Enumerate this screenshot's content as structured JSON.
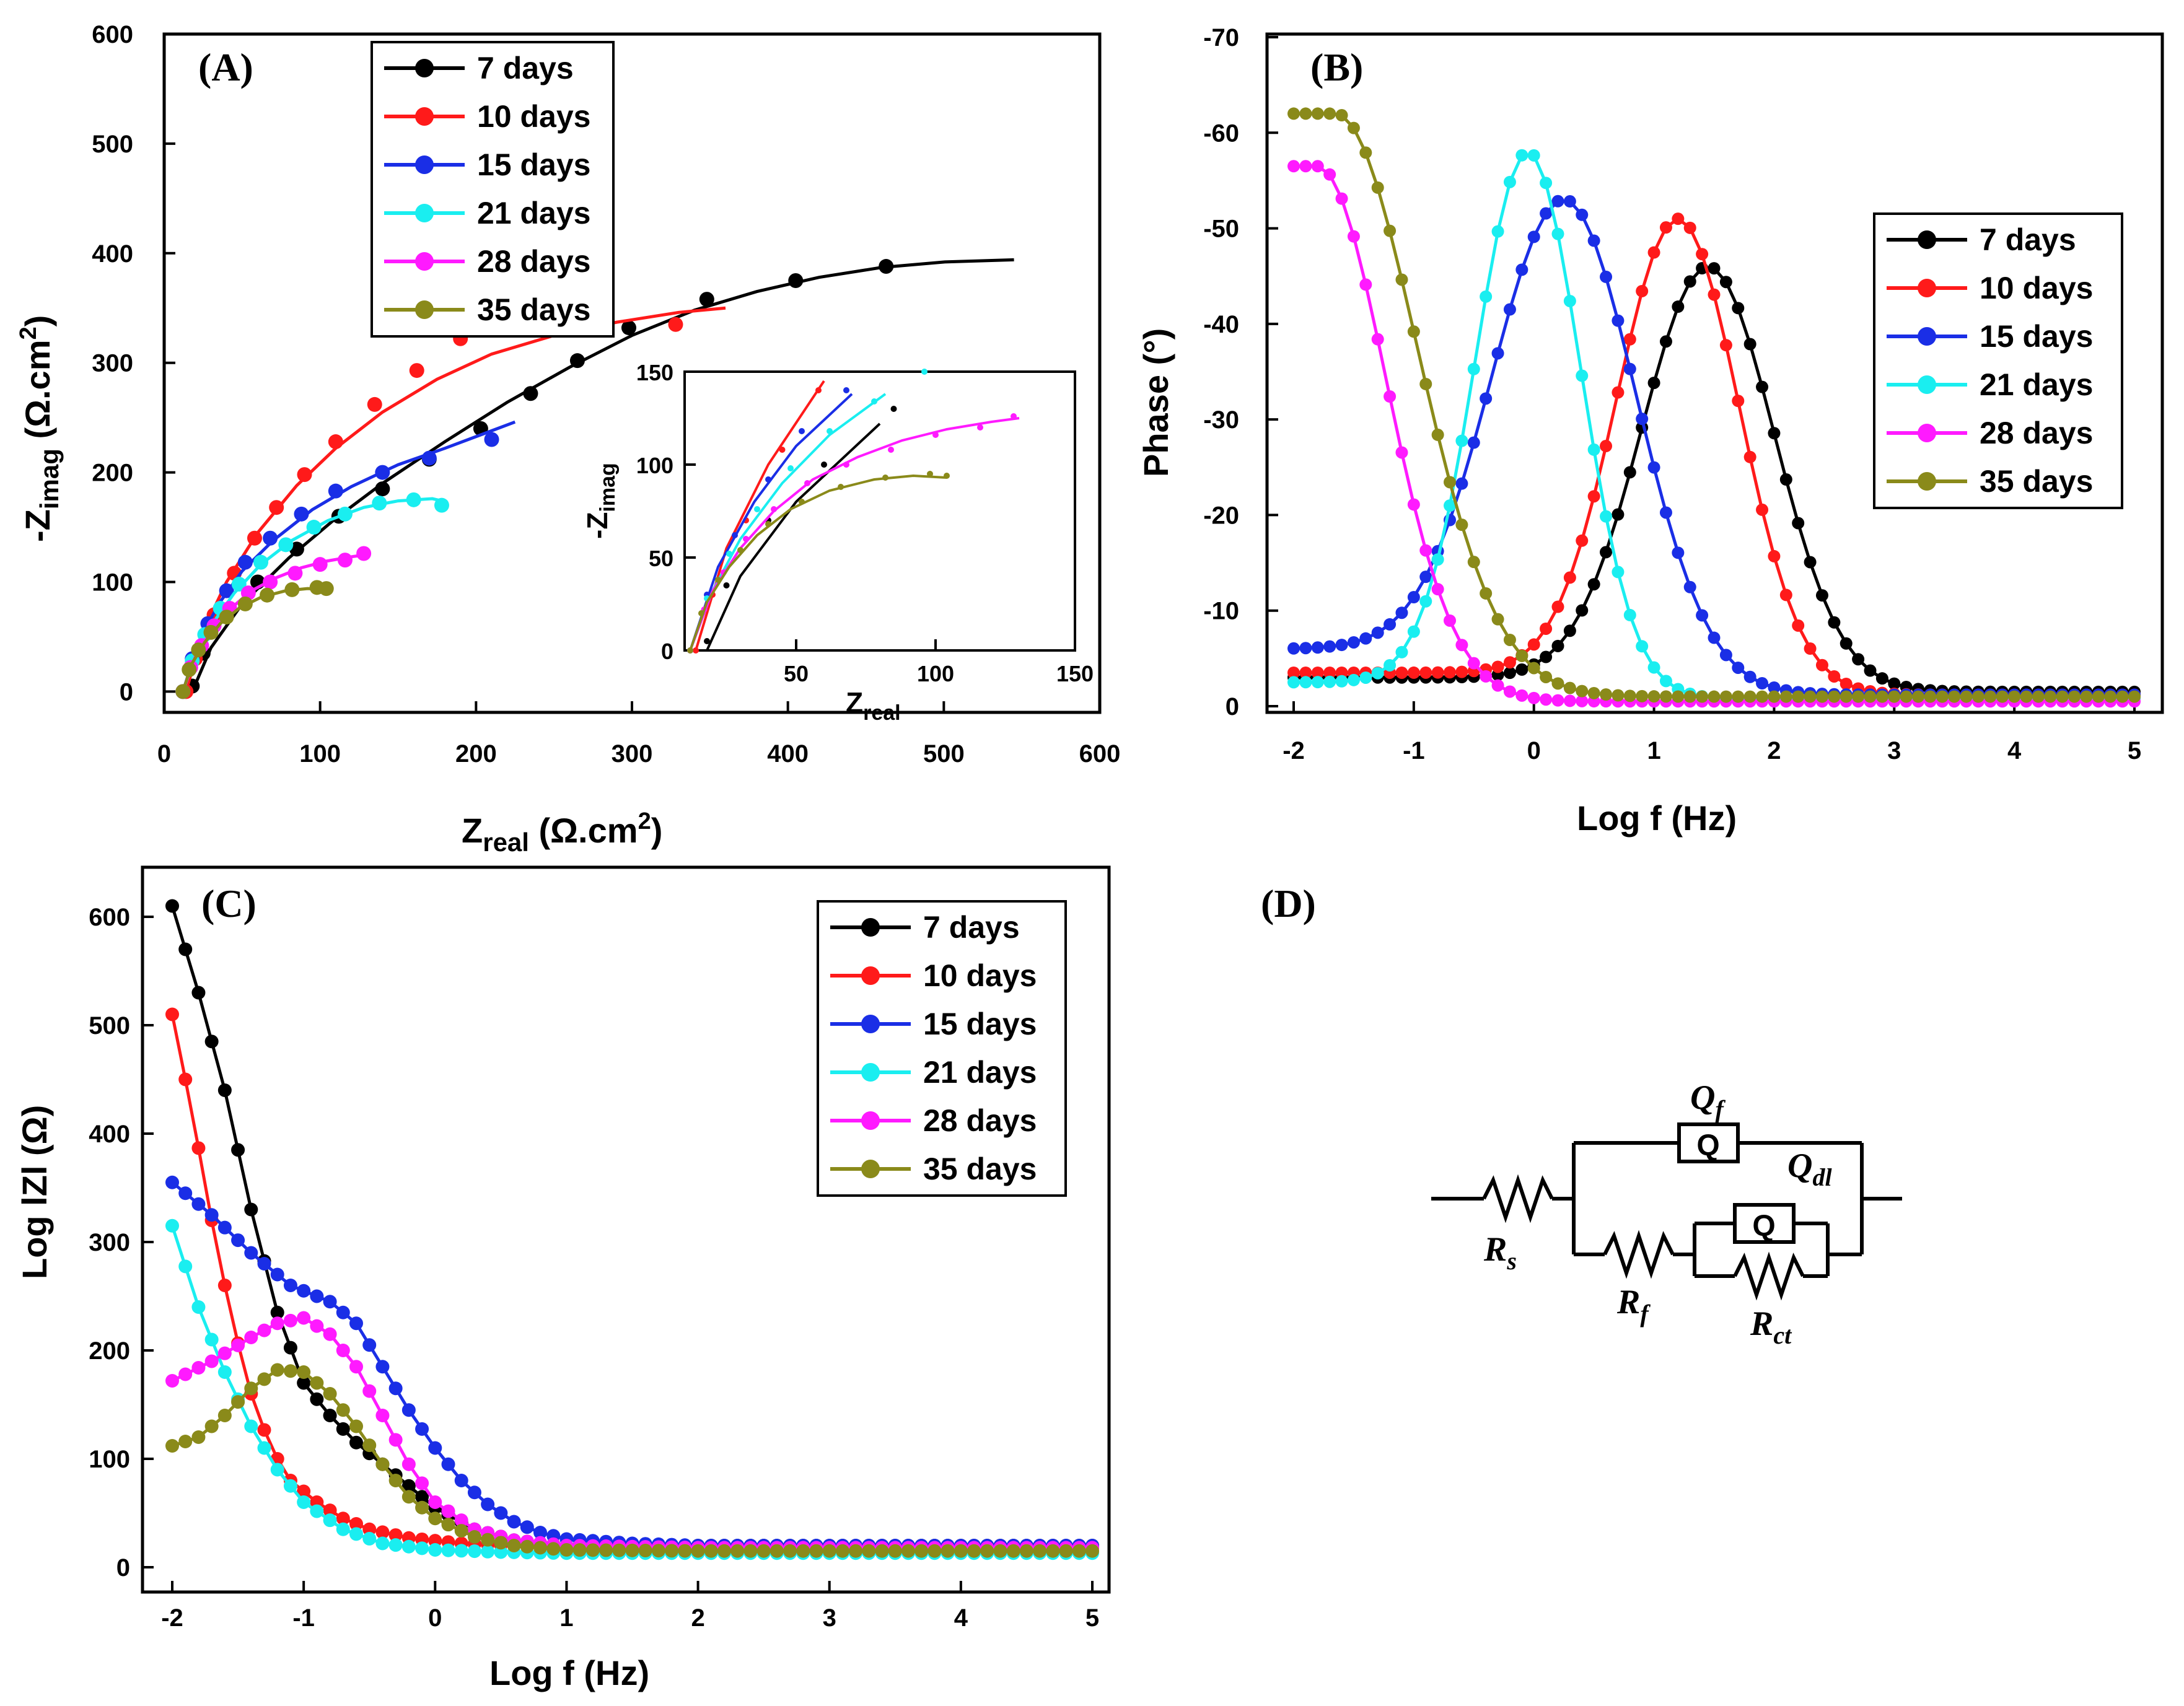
{
  "figure": {
    "panels": {
      "A": "(A)",
      "B": "(B)",
      "C": "(C)",
      "D": "(D)"
    }
  },
  "series_colors": {
    "7 days": "#000000",
    "10 days": "#ff1a1a",
    "15 days": "#1a2ee6",
    "21 days": "#1aeef0",
    "28 days": "#ff1aff",
    "35 days": "#8a8a1a"
  },
  "chart_data": [
    {
      "id": "A",
      "type": "scatter",
      "title": "",
      "xlabel_main": "Z",
      "xlabel_sub": "real",
      "xlabel_unit": " (Ω.cm",
      "xlabel_sup": "2",
      "xlabel_close": ")",
      "ylabel_pre": "-Z",
      "ylabel_sub": "imag",
      "ylabel_unit": " (Ω.cm",
      "ylabel_sup": "2",
      "ylabel_close": ")",
      "xlim": [
        0,
        600
      ],
      "ylim": [
        0,
        600
      ],
      "xticks": [
        "0",
        "100",
        "200",
        "300",
        "400",
        "500",
        "600"
      ],
      "yticks": [
        "0",
        "100",
        "200",
        "300",
        "400",
        "500",
        "600"
      ],
      "legend_position": "top-center",
      "grid": false,
      "series": [
        {
          "name": "7 days",
          "x": [
            18,
            25,
            40,
            60,
            85,
            112,
            140,
            170,
            203,
            235,
            265,
            298,
            348,
            405,
            463
          ],
          "y": [
            5,
            35,
            70,
            100,
            130,
            160,
            185,
            212,
            240,
            272,
            302,
            332,
            358,
            375,
            388
          ],
          "fit_x": [
            18,
            30,
            50,
            80,
            110,
            140,
            180,
            220,
            260,
            300,
            340,
            380,
            420,
            460,
            500,
            545
          ],
          "fit_y": [
            0,
            40,
            80,
            122,
            158,
            190,
            228,
            264,
            296,
            325,
            348,
            365,
            378,
            387,
            392,
            394
          ]
        },
        {
          "name": "10 days",
          "x": [
            14,
            20,
            32,
            45,
            58,
            72,
            90,
            110,
            135,
            162,
            190,
            230,
            268,
            328
          ],
          "y": [
            0,
            30,
            70,
            108,
            140,
            168,
            198,
            228,
            262,
            293,
            322,
            345,
            358,
            335
          ],
          "fit_x": [
            14,
            25,
            40,
            60,
            85,
            110,
            140,
            175,
            210,
            250,
            290,
            330,
            360
          ],
          "fit_y": [
            0,
            55,
            100,
            145,
            188,
            222,
            255,
            285,
            308,
            325,
            337,
            346,
            350
          ]
        },
        {
          "name": "15 days",
          "x": [
            12,
            18,
            28,
            40,
            52,
            68,
            88,
            110,
            140,
            170,
            210
          ],
          "y": [
            0,
            30,
            62,
            92,
            118,
            140,
            162,
            183,
            200,
            213,
            230
          ],
          "fit_x": [
            12,
            22,
            35,
            50,
            70,
            95,
            120,
            150,
            180,
            210,
            225
          ],
          "fit_y": [
            0,
            45,
            80,
            110,
            138,
            166,
            187,
            207,
            222,
            238,
            246
          ]
        },
        {
          "name": "21 days",
          "x": [
            12,
            18,
            26,
            36,
            48,
            62,
            78,
            96,
            116,
            138,
            160,
            178
          ],
          "y": [
            0,
            28,
            52,
            76,
            98,
            118,
            134,
            150,
            162,
            172,
            175,
            170
          ],
          "fit_x": [
            12,
            20,
            30,
            45,
            62,
            82,
            105,
            128,
            150,
            172,
            178
          ],
          "fit_y": [
            0,
            32,
            60,
            90,
            116,
            138,
            156,
            168,
            174,
            176,
            174
          ]
        },
        {
          "name": "28 days",
          "x": [
            12,
            17,
            24,
            32,
            42,
            54,
            68,
            84,
            100,
            116,
            128
          ],
          "y": [
            0,
            22,
            42,
            60,
            76,
            90,
            100,
            108,
            116,
            120,
            126
          ],
          "fit_x": [
            12,
            20,
            30,
            42,
            56,
            72,
            88,
            104,
            120,
            130
          ],
          "fit_y": [
            0,
            32,
            55,
            75,
            92,
            104,
            113,
            119,
            123,
            125
          ]
        },
        {
          "name": "35 days",
          "x": [
            12,
            16,
            22,
            30,
            40,
            52,
            66,
            82,
            98,
            104
          ],
          "y": [
            0,
            20,
            38,
            54,
            68,
            80,
            88,
            93,
            95,
            94
          ],
          "fit_x": [
            12,
            18,
            26,
            36,
            48,
            62,
            78,
            92,
            104
          ],
          "fit_y": [
            0,
            26,
            45,
            62,
            76,
            86,
            92,
            94,
            93
          ]
        }
      ],
      "inset": {
        "xlabel_main": "Z",
        "xlabel_sub": "real",
        "ylabel_pre": "-Z",
        "ylabel_sub": "imag",
        "xlim": [
          10,
          150
        ],
        "ylim": [
          0,
          150
        ],
        "xticks": [
          "50",
          "100",
          "150"
        ],
        "yticks": [
          "0",
          "50",
          "100",
          "150"
        ]
      }
    },
    {
      "id": "B",
      "type": "line",
      "title": "",
      "xlabel": "Log f (Hz)",
      "ylabel": "Phase (°)",
      "xlim": [
        -2,
        5
      ],
      "ylim": [
        0,
        -70
      ],
      "xticks": [
        "-2",
        "-1",
        "0",
        "1",
        "2",
        "3",
        "4",
        "5"
      ],
      "yticks": [
        "0",
        "-10",
        "-20",
        "-30",
        "-40",
        "-50",
        "-60",
        "-70"
      ],
      "legend_position": "right",
      "grid": false,
      "series": [
        {
          "name": "7 days",
          "peak_x": 1.45,
          "peak_y": -46,
          "width": 0.78,
          "base_low": -3,
          "base_high": -1.5
        },
        {
          "name": "10 days",
          "peak_x": 1.2,
          "peak_y": -51,
          "width": 0.72,
          "base_low": -3.5,
          "base_high": -1.2
        },
        {
          "name": "15 days",
          "peak_x": 0.25,
          "peak_y": -53,
          "width": 0.85,
          "base_low": -6,
          "base_high": -1.2
        },
        {
          "name": "21 days",
          "peak_x": -0.05,
          "peak_y": -58,
          "width": 0.62,
          "base_low": -2.5,
          "base_high": -0.8
        },
        {
          "name": "28 days",
          "peak_x": -1.8,
          "peak_y": -56.5,
          "width": 0.8,
          "base_low": -56,
          "base_high": -0.5
        },
        {
          "name": "35 days",
          "peak_x": -1.65,
          "peak_y": -62,
          "width": 0.95,
          "base_low": -61,
          "base_high": -1
        }
      ]
    },
    {
      "id": "C",
      "type": "line",
      "title": "",
      "xlabel": "Log f (Hz)",
      "ylabel": "Log lZl (Ω)",
      "xlim": [
        -2.1,
        5
      ],
      "ylim": [
        0,
        650
      ],
      "xticks": [
        "-2",
        "-1",
        "0",
        "1",
        "2",
        "3",
        "4",
        "5"
      ],
      "yticks": [
        "0",
        "100",
        "200",
        "300",
        "400",
        "500",
        "600"
      ],
      "legend_position": "top-right",
      "grid": false,
      "series": [
        {
          "name": "7 days",
          "x": [
            -2,
            -1.8,
            -1.6,
            -1.4,
            -1.2,
            -1,
            -0.8,
            -0.6,
            -0.4,
            -0.2,
            0,
            0.3,
            0.6,
            1,
            2,
            3,
            4,
            5
          ],
          "y": [
            610,
            530,
            440,
            330,
            235,
            170,
            140,
            115,
            95,
            75,
            55,
            35,
            25,
            20,
            20,
            20,
            20,
            20
          ]
        },
        {
          "name": "10 days",
          "x": [
            -2,
            -1.85,
            -1.7,
            -1.55,
            -1.4,
            -1.25,
            -1.1,
            -0.9,
            -0.7,
            -0.5,
            -0.2,
            0.2,
            0.6,
            1,
            2,
            3,
            4,
            5
          ],
          "y": [
            510,
            420,
            320,
            230,
            160,
            110,
            80,
            60,
            45,
            35,
            27,
            22,
            20,
            19,
            18,
            18,
            18,
            18
          ]
        },
        {
          "name": "15 days",
          "x": [
            -2,
            -1.7,
            -1.4,
            -1.1,
            -0.8,
            -0.6,
            -0.4,
            -0.2,
            0,
            0.2,
            0.4,
            0.6,
            0.8,
            1,
            1.5,
            2,
            3,
            4,
            5
          ],
          "y": [
            355,
            325,
            290,
            260,
            245,
            225,
            185,
            145,
            110,
            80,
            58,
            42,
            32,
            26,
            22,
            20,
            20,
            20,
            20
          ]
        },
        {
          "name": "21 days",
          "x": [
            -2,
            -1.8,
            -1.6,
            -1.4,
            -1.2,
            -1,
            -0.7,
            -0.4,
            0,
            0.5,
            1,
            2,
            3,
            4,
            5
          ],
          "y": [
            315,
            240,
            180,
            130,
            90,
            60,
            35,
            22,
            16,
            14,
            13,
            13,
            13,
            13,
            13
          ]
        },
        {
          "name": "28 days",
          "x": [
            -2,
            -1.7,
            -1.4,
            -1.2,
            -1,
            -0.8,
            -0.6,
            -0.4,
            -0.2,
            0,
            0.3,
            0.6,
            1,
            2,
            3,
            4,
            5
          ],
          "y": [
            172,
            190,
            212,
            225,
            230,
            215,
            185,
            140,
            95,
            60,
            35,
            25,
            20,
            18,
            18,
            18,
            18
          ]
        },
        {
          "name": "35 days",
          "x": [
            -2,
            -1.8,
            -1.6,
            -1.4,
            -1.2,
            -1,
            -0.8,
            -0.6,
            -0.4,
            -0.2,
            0,
            0.3,
            0.6,
            1,
            2,
            3,
            4,
            5
          ],
          "y": [
            112,
            120,
            140,
            165,
            182,
            180,
            160,
            130,
            95,
            65,
            45,
            28,
            20,
            16,
            15,
            15,
            15,
            15
          ]
        }
      ]
    }
  ],
  "circuit": {
    "labels": {
      "qf_main": "Q",
      "qf_sub": "f",
      "qdl_main": "Q",
      "qdl_sub": "dl",
      "rs_main": "R",
      "rs_sub": "s",
      "rf_main": "R",
      "rf_sub": "f",
      "rct_main": "R",
      "rct_sub": "ct",
      "cpe_symbol": "Q"
    }
  }
}
